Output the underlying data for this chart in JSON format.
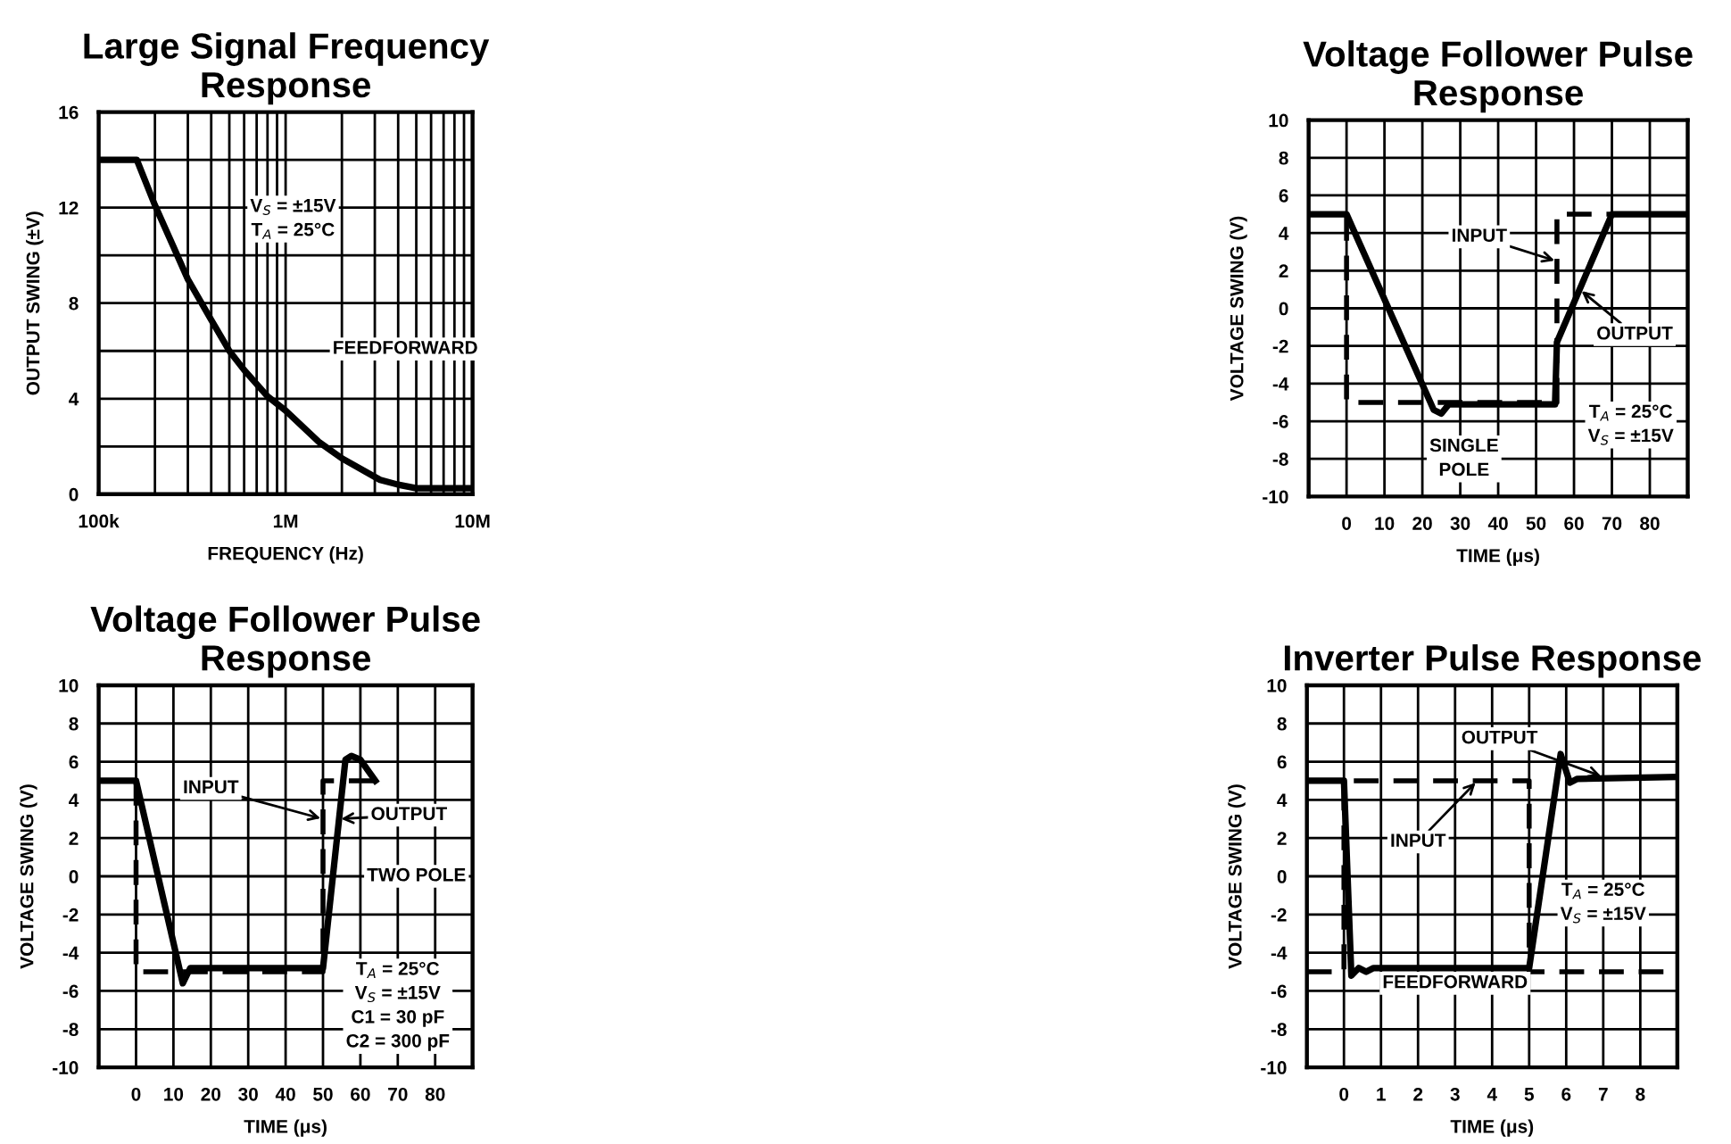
{
  "chart_data": [
    {
      "type": "line",
      "title": "Large Signal Frequency\nResponse",
      "xlabel": "FREQUENCY (Hz)",
      "ylabel": "OUTPUT SWING (±V)",
      "log": "x",
      "grid": true,
      "legend": false,
      "xlim": [
        100000,
        10000000
      ],
      "xticks": [
        {
          "value": 100000,
          "label": "100k"
        },
        {
          "value": 200000,
          "label": null
        },
        {
          "value": 300000,
          "label": null
        },
        {
          "value": 400000,
          "label": null
        },
        {
          "value": 500000,
          "label": null
        },
        {
          "value": 600000,
          "label": null
        },
        {
          "value": 700000,
          "label": null
        },
        {
          "value": 800000,
          "label": null
        },
        {
          "value": 900000,
          "label": null
        },
        {
          "value": 1000000,
          "label": "1M"
        },
        {
          "value": 2000000,
          "label": null
        },
        {
          "value": 3000000,
          "label": null
        },
        {
          "value": 4000000,
          "label": null
        },
        {
          "value": 5000000,
          "label": null
        },
        {
          "value": 6000000,
          "label": null
        },
        {
          "value": 7000000,
          "label": null
        },
        {
          "value": 8000000,
          "label": null
        },
        {
          "value": 9000000,
          "label": null
        },
        {
          "value": 10000000,
          "label": "10M"
        }
      ],
      "ylim": [
        0,
        16
      ],
      "yticks": [
        0,
        {
          "value": 2,
          "label": null
        },
        4,
        {
          "value": 6,
          "label": null
        },
        8,
        {
          "value": 10,
          "label": null
        },
        12,
        {
          "value": 14,
          "label": null
        },
        16
      ],
      "series": [
        {
          "color": "#000000",
          "line_style": "solid",
          "x": [
            100000,
            160000,
            200000,
            250000,
            300000,
            400000,
            500000,
            600000,
            800000,
            1000000,
            1500000,
            2000000,
            3200000,
            4000000,
            5000000,
            10000000
          ],
          "values": [
            14,
            14,
            12.1,
            10.4,
            9,
            7.3,
            6,
            5.2,
            4.1,
            3.5,
            2.2,
            1.5,
            0.6,
            0.4,
            0.25,
            0.25
          ]
        }
      ],
      "annotations": [
        "V$_{S}$ = ±15V\nT$_{A}$ = 25°C",
        "FEEDFORWARD"
      ]
    },
    {
      "type": "line",
      "title": "Voltage Follower Pulse\nResponse",
      "xlabel": "TIME (μs)",
      "ylabel": "VOLTAGE SWING (V)",
      "grid": true,
      "legend": false,
      "xlim": [
        -10,
        90
      ],
      "xticks": [
        0,
        10,
        20,
        30,
        40,
        50,
        60,
        70,
        80
      ],
      "ylim": [
        -10,
        10
      ],
      "yticks": [
        10,
        8,
        6,
        4,
        2,
        0,
        -2,
        -4,
        -6,
        -8,
        -10
      ],
      "series": [
        {
          "color": "#000000",
          "line_style": "dashed",
          "x": [
            -10,
            0,
            0,
            55.5,
            55.5,
            90
          ],
          "values": [
            5,
            5,
            -5,
            -5,
            5,
            5
          ]
        },
        {
          "color": "#000000",
          "line_style": "solid",
          "x": [
            -10,
            0,
            23,
            25,
            27,
            55,
            55.5,
            70,
            90
          ],
          "values": [
            5,
            5,
            -5.4,
            -5.6,
            -5.1,
            -5.1,
            -1.8,
            5,
            5
          ]
        }
      ],
      "annotations": [
        {
          "text": "INPUT",
          "x": 55.5,
          "y": 2.5
        },
        {
          "text": "OUTPUT",
          "x": 61.5,
          "y": 1
        },
        "SINGLE\nPOLE",
        "T$_{A}$ = 25°C\nV$_{S}$ = ±15V"
      ]
    },
    {
      "type": "line",
      "title": "Voltage Follower Pulse\nResponse",
      "xlabel": "TIME (μs)",
      "ylabel": "VOLTAGE SWING (V)",
      "grid": true,
      "legend": false,
      "xlim": [
        -10,
        90
      ],
      "xticks": [
        0,
        10,
        20,
        30,
        40,
        50,
        60,
        70,
        80
      ],
      "ylim": [
        -10,
        10
      ],
      "yticks": [
        10,
        8,
        6,
        4,
        2,
        0,
        -2,
        -4,
        -6,
        -8,
        -10
      ],
      "series": [
        {
          "color": "#000000",
          "line_style": "dashed",
          "x": [
            0,
            0,
            50,
            50,
            64
          ],
          "values": [
            5,
            -5,
            -5,
            5,
            5
          ]
        },
        {
          "color": "#000000",
          "line_style": "solid",
          "x": [
            -10,
            0,
            12.5,
            14.5,
            50,
            56,
            57.6,
            60,
            64
          ],
          "values": [
            5,
            5,
            -5.6,
            -4.8,
            -4.8,
            6.1,
            6.3,
            6.1,
            5
          ]
        }
      ],
      "annotations": [
        {
          "text": "INPUT",
          "x": 50,
          "y": 3
        },
        {
          "text": "OUTPUT",
          "x": 54.2,
          "y": 3
        },
        "TWO POLE",
        "T$_{A}$ = 25°C\nV$_{S}$ = ±15V\nC1 = 30 pF\nC2 = 300 pF"
      ]
    },
    {
      "type": "line",
      "title": "Inverter Pulse Response",
      "xlabel": "TIME (μs)",
      "ylabel": "VOLTAGE SWING (V)",
      "grid": true,
      "legend": false,
      "xlim": [
        -1,
        9
      ],
      "xticks": [
        0,
        1,
        2,
        3,
        4,
        5,
        6,
        7,
        8
      ],
      "ylim": [
        -10,
        10
      ],
      "yticks": [
        10,
        8,
        6,
        4,
        2,
        0,
        -2,
        -4,
        -6,
        -8,
        -10
      ],
      "series": [
        {
          "color": "#000000",
          "line_style": "dashed",
          "x": [
            -1,
            0,
            0,
            5,
            5,
            9
          ],
          "values": [
            -5,
            -5,
            5,
            5,
            -5,
            -5
          ]
        },
        {
          "color": "#000000",
          "line_style": "solid",
          "x": [
            -1,
            0,
            0.2,
            0.4,
            0.6,
            0.8,
            5,
            5.85,
            6.1,
            6.3,
            9
          ],
          "values": [
            5,
            5,
            -5.2,
            -4.8,
            -5.0,
            -4.8,
            -4.8,
            6.4,
            4.9,
            5.1,
            5.2
          ]
        }
      ],
      "annotations": [
        {
          "text": "OUTPUT",
          "x": 7,
          "y": 5.2
        },
        {
          "text": "INPUT",
          "x": 3.6,
          "y": 5
        },
        "FEEDFORWARD",
        "T$_{A}$ = 25°C\nV$_{S}$ = ±15V"
      ]
    }
  ]
}
